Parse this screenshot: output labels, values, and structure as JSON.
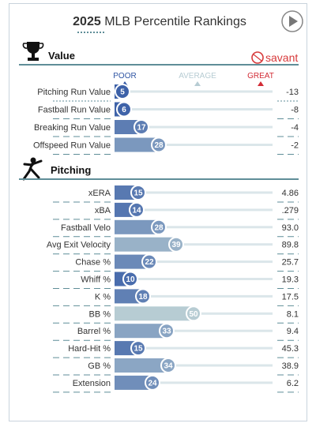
{
  "header": {
    "title_year": "2025",
    "title_rest": " MLB Percentile Rankings",
    "play_button": "play-icon"
  },
  "brand": {
    "name": "savant",
    "icon": "baseball-icon"
  },
  "colors": {
    "poor": "#2f55a3",
    "average": "#b7ccd3",
    "great": "#d22c36",
    "track": "#dbe6ea",
    "section_rule": "#5f8e98",
    "dash": "#5f8e98",
    "text": "#333333",
    "brand_red": "#d7393a"
  },
  "scale_labels": {
    "poor": "POOR",
    "average": "AVERAGE",
    "great": "GREAT"
  },
  "chart_data": [
    {
      "type": "bar",
      "section": "Value",
      "section_icon": "trophy-icon",
      "categories": [
        "Pitching Run Value",
        "Fastball Run Value",
        "Breaking Run Value",
        "Offspeed Run Value"
      ],
      "values": [
        5,
        6,
        17,
        28
      ],
      "stat_values": [
        "-13",
        "-8",
        "-4",
        "-2"
      ],
      "xlim": [
        0,
        100
      ]
    },
    {
      "type": "bar",
      "section": "Pitching",
      "section_icon": "pitcher-icon",
      "categories": [
        "xERA",
        "xBA",
        "Fastball Velo",
        "Avg Exit Velocity",
        "Chase %",
        "Whiff %",
        "K %",
        "BB %",
        "Barrel %",
        "Hard-Hit %",
        "GB %",
        "Extension"
      ],
      "values": [
        15,
        14,
        28,
        39,
        22,
        10,
        18,
        50,
        33,
        15,
        34,
        24
      ],
      "stat_values": [
        "4.86",
        ".279",
        "93.0",
        "89.8",
        "25.7",
        "19.3",
        "17.5",
        "8.1",
        "9.4",
        "45.3",
        "38.9",
        "6.2"
      ],
      "xlim": [
        0,
        100
      ]
    }
  ]
}
